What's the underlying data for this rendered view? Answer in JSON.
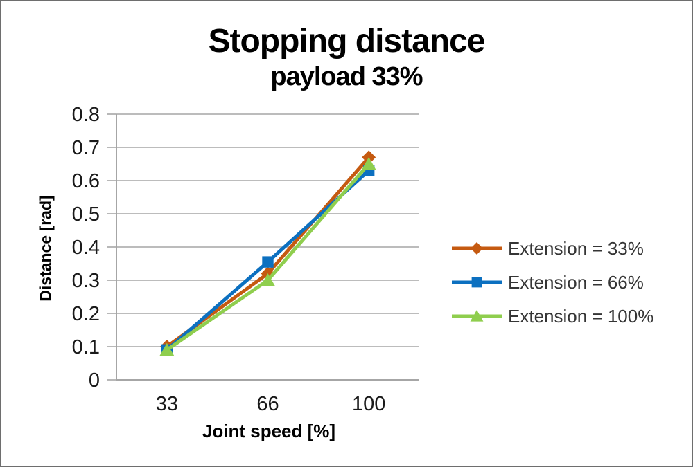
{
  "chart_data": {
    "type": "line",
    "title": "Stopping distance",
    "subtitle": "payload 33%",
    "xlabel": "Joint speed [%]",
    "ylabel": "Distance [rad]",
    "categories": [
      "33",
      "66",
      "100"
    ],
    "yticks": [
      "0",
      "0.1",
      "0.2",
      "0.3",
      "0.4",
      "0.5",
      "0.6",
      "0.7",
      "0.8"
    ],
    "ylim": [
      0,
      0.8
    ],
    "grid": "horizontal",
    "legend_position": "right",
    "series": [
      {
        "name": "Extension = 33%",
        "marker": "diamond",
        "color": "#C55A11",
        "values": [
          0.1,
          0.32,
          0.67
        ]
      },
      {
        "name": "Extension = 66%",
        "marker": "square",
        "color": "#0C70C0",
        "values": [
          0.09,
          0.355,
          0.63
        ]
      },
      {
        "name": "Extension = 100%",
        "marker": "triangle",
        "color": "#8FCE4E",
        "values": [
          0.09,
          0.3,
          0.65
        ]
      }
    ],
    "colors": {
      "gridline": "#A6A6A6",
      "axis": "#A6A6A6",
      "tick_text": "#1a1a1a",
      "title_text": "#000000"
    }
  }
}
